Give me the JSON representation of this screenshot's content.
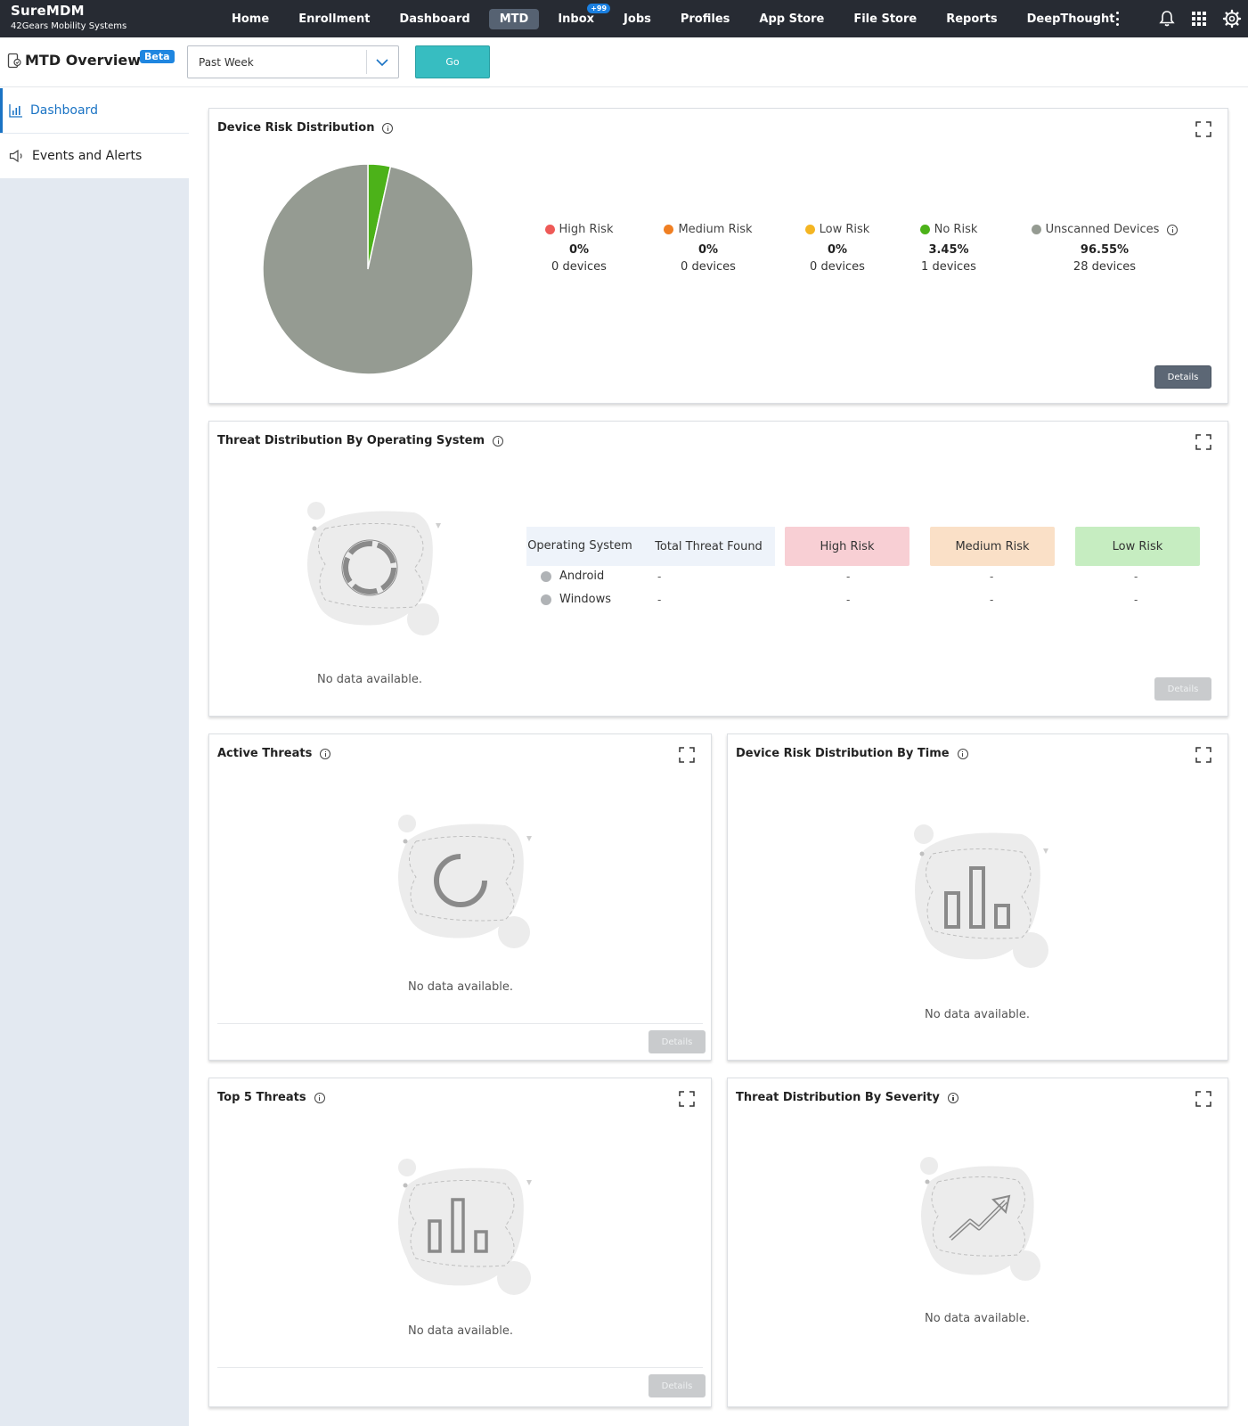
{
  "app": {
    "title": "SureMDM",
    "subtitle": "42Gears Mobility Systems"
  },
  "nav": {
    "items": [
      {
        "label": "Home"
      },
      {
        "label": "Enrollment"
      },
      {
        "label": "Dashboard"
      },
      {
        "label": "MTD",
        "active": true
      },
      {
        "label": "Inbox",
        "badge": "+99"
      },
      {
        "label": "Jobs"
      },
      {
        "label": "Profiles"
      },
      {
        "label": "App Store"
      },
      {
        "label": "File Store"
      },
      {
        "label": "Reports"
      },
      {
        "label": "DeepThought"
      }
    ],
    "icons": [
      "more-vertical-icon",
      "bell-icon",
      "apps-grid-icon",
      "gear-icon"
    ]
  },
  "header": {
    "title": "MTD Overview",
    "badge": "Beta",
    "period": {
      "value": "Past Week"
    },
    "go_label": "Go"
  },
  "sidebar": {
    "items": [
      {
        "label": "Dashboard",
        "icon": "bar-chart-icon",
        "active": true
      },
      {
        "label": "Events and Alerts",
        "icon": "megaphone-icon"
      }
    ]
  },
  "colors": {
    "high": "#ee5a57",
    "medium": "#f07f22",
    "low": "#f4b522",
    "none": "#4cb219",
    "unscanned": "#959b92",
    "accent": "#1a73c4"
  },
  "cards": {
    "risk_distribution": {
      "title": "Device Risk Distribution",
      "details_label": "Details",
      "legend": [
        {
          "label": "High Risk",
          "pct": "0%",
          "devices": "0 devices"
        },
        {
          "label": "Medium Risk",
          "pct": "0%",
          "devices": "0 devices"
        },
        {
          "label": "Low Risk",
          "pct": "0%",
          "devices": "0 devices"
        },
        {
          "label": "No Risk",
          "pct": "3.45%",
          "devices": "1 devices"
        },
        {
          "label": "Unscanned Devices",
          "pct": "96.55%",
          "devices": "28 devices"
        }
      ]
    },
    "threat_by_os": {
      "title": "Threat Distribution By Operating System",
      "no_data": "No data available.",
      "details_label": "Details",
      "columns": [
        "Operating System",
        "Total Threat Found",
        "High Risk",
        "Medium Risk",
        "Low Risk"
      ],
      "rows": [
        {
          "os": "Android",
          "total": "-",
          "high": "-",
          "medium": "-",
          "low": "-"
        },
        {
          "os": "Windows",
          "total": "-",
          "high": "-",
          "medium": "-",
          "low": "-"
        }
      ]
    },
    "active_threats": {
      "title": "Active Threats",
      "no_data": "No data available.",
      "details_label": "Details"
    },
    "risk_by_time": {
      "title": "Device Risk Distribution By Time",
      "no_data": "No data available."
    },
    "top5_threats": {
      "title": "Top 5 Threats",
      "no_data": "No data available.",
      "details_label": "Details"
    },
    "threat_by_severity": {
      "title": "Threat Distribution By Severity",
      "no_data": "No data available."
    }
  },
  "chart_data": {
    "type": "pie",
    "categories": [
      "High Risk",
      "Medium Risk",
      "Low Risk",
      "No Risk",
      "Unscanned Devices"
    ],
    "values": [
      0,
      0,
      0,
      3.45,
      96.55
    ],
    "devices": [
      0,
      0,
      0,
      1,
      28
    ],
    "colors": [
      "#ee5a57",
      "#f07f22",
      "#f4b522",
      "#4cb219",
      "#959b92"
    ]
  }
}
